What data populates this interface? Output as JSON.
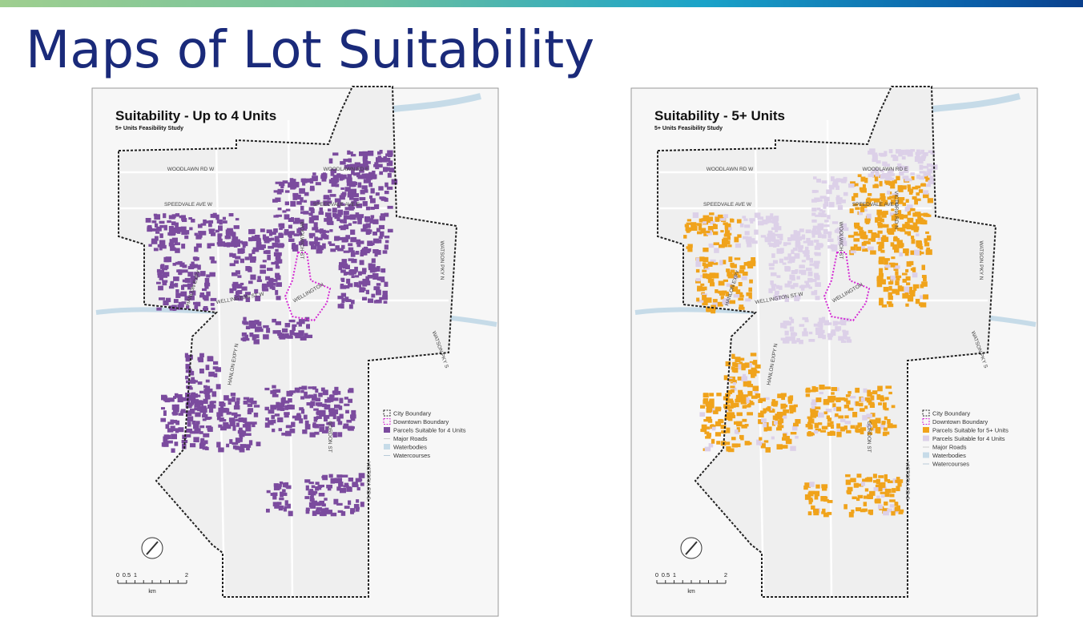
{
  "title": "Maps of Lot Suitability",
  "maps": [
    {
      "title": "Suitability - Up to 4 Units",
      "subtitle": "5+ Units Feasibility Study",
      "roads": [
        "WOODLAWN RD W",
        "WOODLAWN RD E",
        "SPEEDVALE AVE W",
        "SPEEDVALE AVE E",
        "WELLINGTON ST W",
        "WELLINGTON",
        "HANLON EXPY",
        "HANLON EXPY N",
        "WOOLWICH ST",
        "WATSON PKY N",
        "WATSON PKY S",
        "GORDON ST",
        "VICTORIA RD S"
      ],
      "legend": [
        "City Boundary",
        "Downtown Boundary",
        "Parcels Suitable for 4 Units",
        "Major Roads",
        "Waterbodies",
        "Watercourses"
      ],
      "parcel_colors": [
        "#7b4b9e"
      ],
      "scale": {
        "ticks": [
          "0",
          "0.5",
          "1",
          "2"
        ],
        "unit": "km"
      }
    },
    {
      "title": "Suitability - 5+ Units",
      "subtitle": "5+ Units Feasibility Study",
      "roads": [
        "WOODLAWN RD W",
        "WOODLAWN RD E",
        "SPEEDVALE AVE W",
        "SPEEDVALE AVE E",
        "WELLINGTON ST W",
        "WELLINGTON",
        "HANLON EXPY",
        "HANLON EXPY N",
        "WOOLWICH ST",
        "WATSON PKY N",
        "WATSON PKY S",
        "GORDON ST",
        "VICTORIA RD S",
        "VICTORIA RD N"
      ],
      "legend": [
        "City Boundary",
        "Downtown Boundary",
        "Parcels Suitable for 5+ Units",
        "Parcels Suitable for 4 Units",
        "Major Roads",
        "Waterbodies",
        "Watercourses"
      ],
      "parcel_colors": [
        "#f0a31b",
        "#dcd0e8"
      ],
      "scale": {
        "ticks": [
          "0",
          "0.5",
          "1",
          "2"
        ],
        "unit": "km"
      }
    }
  ]
}
